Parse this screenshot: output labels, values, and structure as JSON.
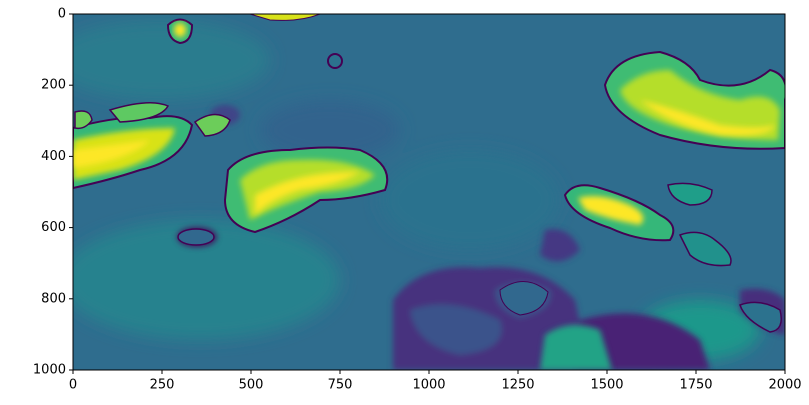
{
  "chart_data": {
    "type": "image",
    "xlim": [
      0,
      2000
    ],
    "ylim": [
      1000,
      0
    ],
    "xticks": [
      0,
      250,
      500,
      750,
      1000,
      1250,
      1500,
      1750,
      2000
    ],
    "yticks": [
      0,
      200,
      400,
      600,
      800,
      1000
    ]
  }
}
